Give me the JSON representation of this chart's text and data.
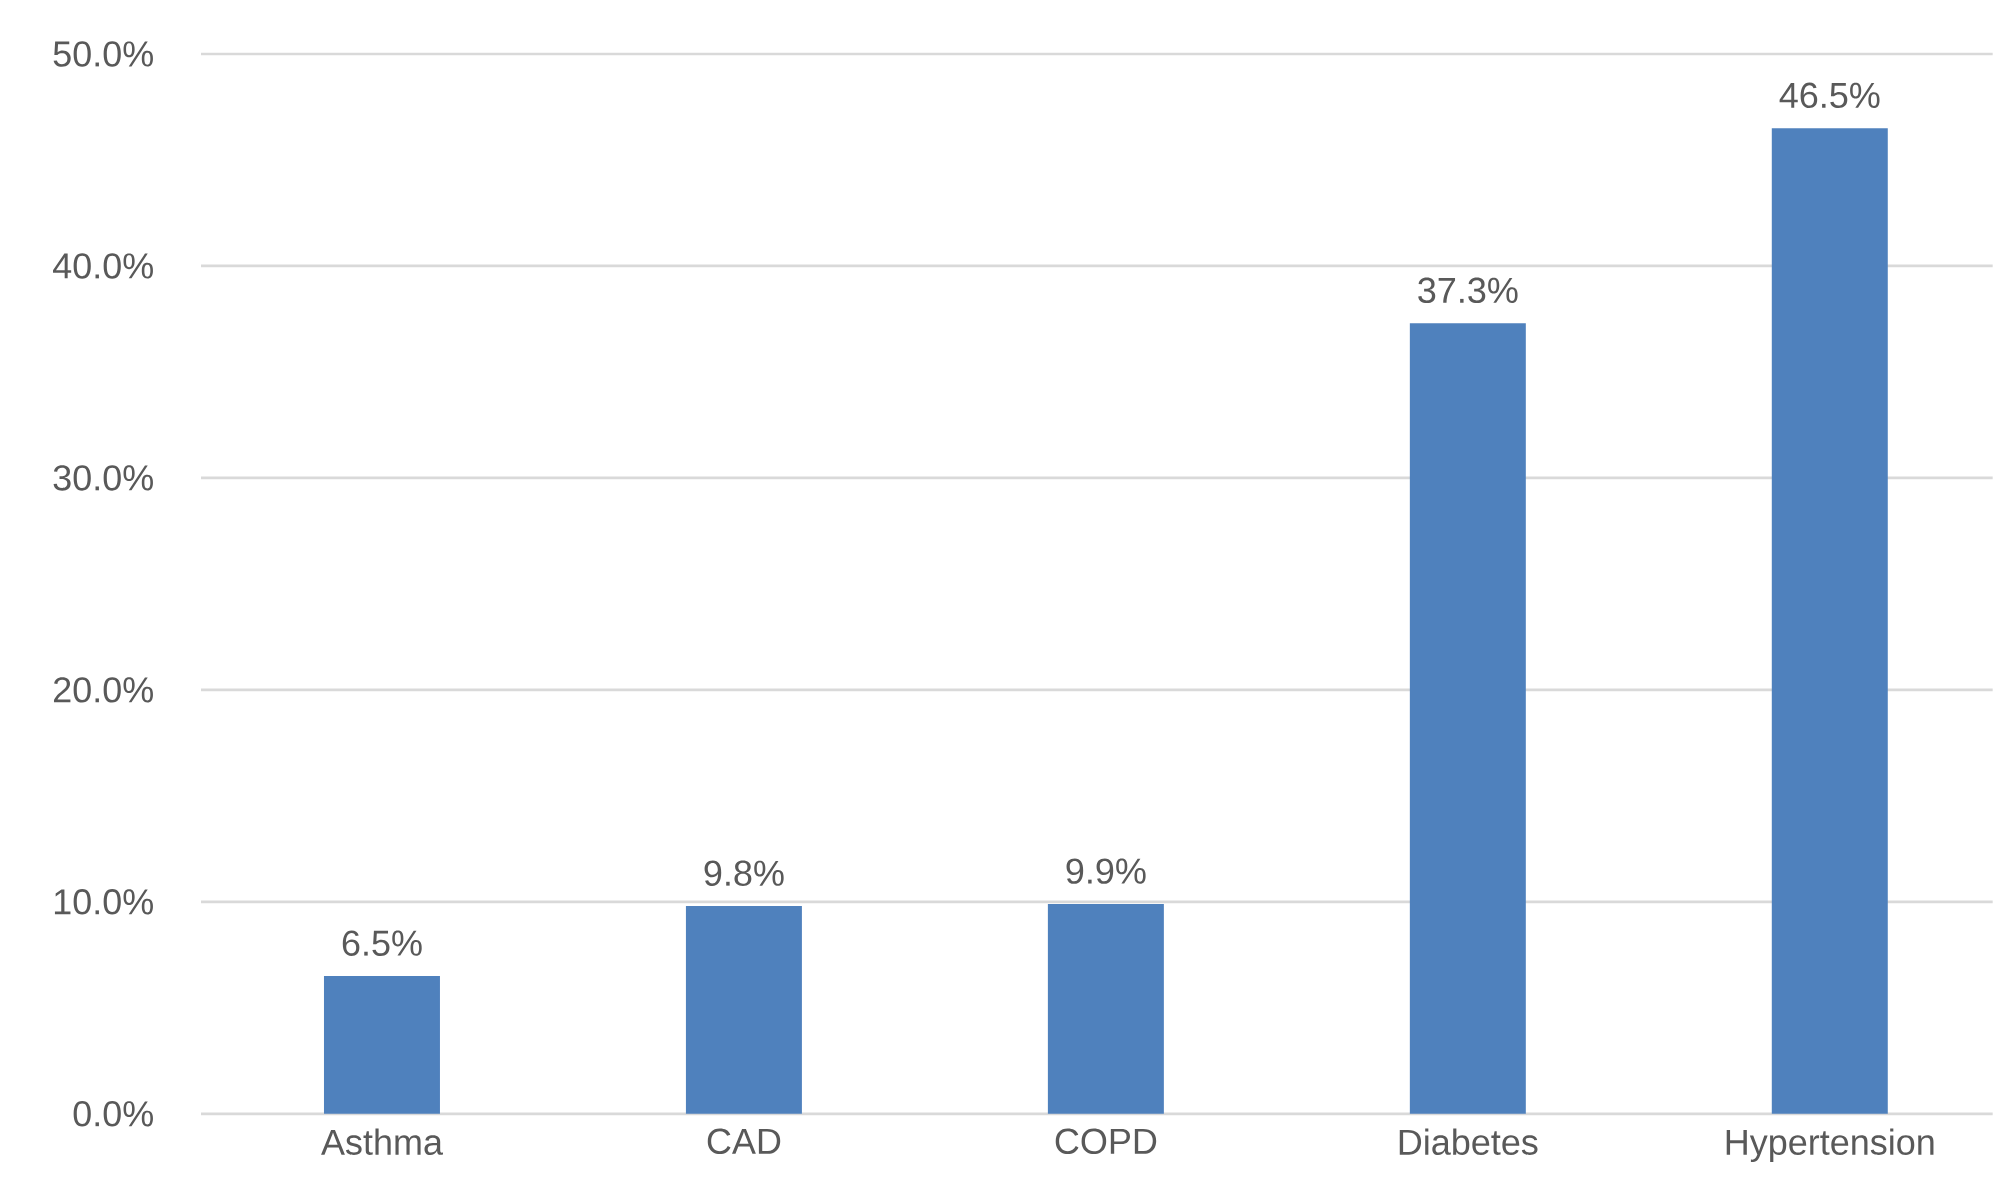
{
  "chart_data": {
    "type": "bar",
    "categories": [
      "Asthma",
      "CAD",
      "COPD",
      "Diabetes",
      "Hypertension"
    ],
    "values": [
      6.5,
      9.8,
      9.9,
      37.3,
      46.5
    ],
    "value_labels": [
      "6.5%",
      "9.8%",
      "9.9%",
      "37.3%",
      "46.5%"
    ],
    "color": "#4f81bd",
    "ylim": [
      0,
      50
    ],
    "yticks": [
      {
        "value": 0,
        "label": "0.0%"
      },
      {
        "value": 10,
        "label": "10.0%"
      },
      {
        "value": 20,
        "label": "20.0%"
      },
      {
        "value": 30,
        "label": "30.0%"
      },
      {
        "value": 40,
        "label": "40.0%"
      },
      {
        "value": 50,
        "label": "50.0%"
      }
    ],
    "grid": "y"
  }
}
